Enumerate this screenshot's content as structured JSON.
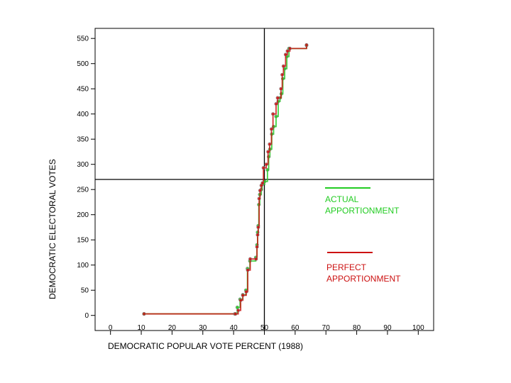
{
  "chart_data": {
    "type": "line",
    "title": "",
    "xlabel": "DEMOCRATIC POPULAR VOTE PERCENT  (1988)",
    "ylabel": "DEMOCRATIC ELECTORAL VOTES",
    "xlim": [
      -5,
      105
    ],
    "ylim": [
      -30,
      570
    ],
    "xticks": [
      0,
      10,
      20,
      30,
      40,
      50,
      60,
      70,
      80,
      90,
      100
    ],
    "yticks": [
      0,
      50,
      100,
      150,
      200,
      250,
      300,
      350,
      400,
      450,
      500,
      550
    ],
    "grid": false,
    "reference_lines": {
      "x": 50,
      "y": 270
    },
    "legend": [
      {
        "label_line1": "ACTUAL",
        "label_line2": "APPORTIONMENT",
        "color": "#22cc22"
      },
      {
        "label_line1": "PERFECT",
        "label_line2": "APPORTIONMENT",
        "color": "#cc1111"
      }
    ],
    "series": [
      {
        "name": "ACTUAL APPORTIONMENT",
        "color": "#22cc22",
        "step": true,
        "points": [
          [
            10.9,
            3
          ],
          [
            40.4,
            3
          ],
          [
            41.2,
            16
          ],
          [
            42.1,
            32
          ],
          [
            43.0,
            41
          ],
          [
            44.0,
            50
          ],
          [
            44.5,
            93
          ],
          [
            45.3,
            108
          ],
          [
            47.2,
            115
          ],
          [
            47.6,
            140
          ],
          [
            47.8,
            165
          ],
          [
            48.0,
            178
          ],
          [
            48.2,
            220
          ],
          [
            48.5,
            240
          ],
          [
            49.0,
            250
          ],
          [
            49.3,
            260
          ],
          [
            50.1,
            266
          ],
          [
            51.0,
            289
          ],
          [
            51.4,
            315
          ],
          [
            51.8,
            330
          ],
          [
            52.4,
            360
          ],
          [
            53.0,
            375
          ],
          [
            53.8,
            395
          ],
          [
            54.5,
            425
          ],
          [
            55.1,
            432
          ],
          [
            55.5,
            440
          ],
          [
            56.0,
            470
          ],
          [
            56.6,
            490
          ],
          [
            57.3,
            514
          ],
          [
            58.0,
            530
          ],
          [
            63.7,
            536
          ]
        ]
      },
      {
        "name": "PERFECT APPORTIONMENT",
        "color": "#cc1111",
        "step": true,
        "points": [
          [
            10.9,
            3
          ],
          [
            40.6,
            3
          ],
          [
            41.5,
            10
          ],
          [
            42.3,
            30
          ],
          [
            43.0,
            40
          ],
          [
            44.1,
            47
          ],
          [
            44.6,
            90
          ],
          [
            45.4,
            112
          ],
          [
            47.3,
            112
          ],
          [
            47.6,
            136
          ],
          [
            47.8,
            160
          ],
          [
            48.0,
            175
          ],
          [
            48.3,
            232
          ],
          [
            48.6,
            248
          ],
          [
            49.0,
            258
          ],
          [
            49.4,
            263
          ],
          [
            49.7,
            293
          ],
          [
            50.6,
            300
          ],
          [
            51.2,
            325
          ],
          [
            51.7,
            340
          ],
          [
            52.3,
            370
          ],
          [
            52.8,
            400
          ],
          [
            53.8,
            420
          ],
          [
            54.3,
            432
          ],
          [
            55.4,
            450
          ],
          [
            55.8,
            478
          ],
          [
            56.2,
            495
          ],
          [
            56.9,
            518
          ],
          [
            57.5,
            525
          ],
          [
            58.3,
            530
          ],
          [
            63.7,
            537
          ]
        ]
      }
    ]
  }
}
